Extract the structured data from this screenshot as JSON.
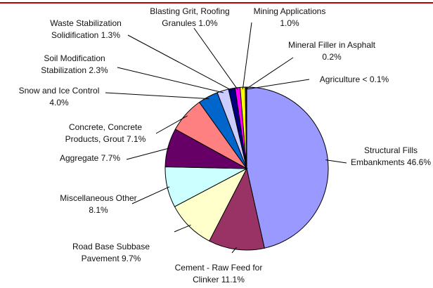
{
  "chart_data": {
    "type": "pie",
    "title": "",
    "slices": [
      {
        "label": "Structural Fills Embankments",
        "value": 46.6,
        "value_text": "46.6%",
        "color": "#9999ff",
        "lines": [
          "Structural Fills",
          "Embankments  46.6%"
        ]
      },
      {
        "label": "Cement - Raw Feed for Clinker",
        "value": 11.1,
        "value_text": "11.1%",
        "color": "#993366",
        "lines": [
          "Cement - Raw Feed for",
          "Clinker 11.1%"
        ]
      },
      {
        "label": "Road Base Subbase Pavement",
        "value": 9.7,
        "value_text": "9.7%",
        "color": "#ffffcc",
        "lines": [
          "Road Base Subbase",
          "Pavement 9.7%"
        ]
      },
      {
        "label": "Miscellaneous Other",
        "value": 8.1,
        "value_text": "8.1%",
        "color": "#ccffff",
        "lines": [
          "Miscellaneous Other",
          "8.1%"
        ]
      },
      {
        "label": "Aggregate",
        "value": 7.7,
        "value_text": "7.7%",
        "color": "#660066",
        "lines": [
          "Aggregate 7.7%"
        ]
      },
      {
        "label": "Concrete, Concrete Products, Grout",
        "value": 7.1,
        "value_text": "7.1%",
        "color": "#ff8080",
        "lines": [
          "Concrete, Concrete",
          "Products, Grout  7.1%"
        ]
      },
      {
        "label": "Snow and Ice Control",
        "value": 4.0,
        "value_text": "4.0%",
        "color": "#0066cc",
        "lines": [
          "Snow and Ice Control",
          "4.0%"
        ]
      },
      {
        "label": "Soil Modification Stabilization",
        "value": 2.3,
        "value_text": "2.3%",
        "color": "#ccccff",
        "lines": [
          "Soil Modification",
          "Stabilization  2.3%"
        ]
      },
      {
        "label": "Waste Stabilization Solidification",
        "value": 1.3,
        "value_text": "1.3%",
        "color": "#000080",
        "lines": [
          "Waste Stabilization",
          "Solidification  1.3%"
        ]
      },
      {
        "label": "Blasting Grit, Roofing Granules",
        "value": 1.0,
        "value_text": "1.0%",
        "color": "#ff00ff",
        "lines": [
          "Blasting Grit, Roofing",
          "Granules 1.0%"
        ]
      },
      {
        "label": "Mining Applications",
        "value": 1.0,
        "value_text": "1.0%",
        "color": "#ffff00",
        "lines": [
          "Mining Applications",
          "1.0%"
        ]
      },
      {
        "label": "Mineral Filler in Asphalt",
        "value": 0.2,
        "value_text": "0.2%",
        "color": "#00ffff",
        "lines": [
          "Mineral Filler in Asphalt",
          "0.2%"
        ]
      },
      {
        "label": "Agriculture",
        "value": 0.1,
        "value_text": "< 0.1%",
        "color": "#800080",
        "lines": [
          "Agriculture < 0.1%"
        ]
      }
    ]
  }
}
